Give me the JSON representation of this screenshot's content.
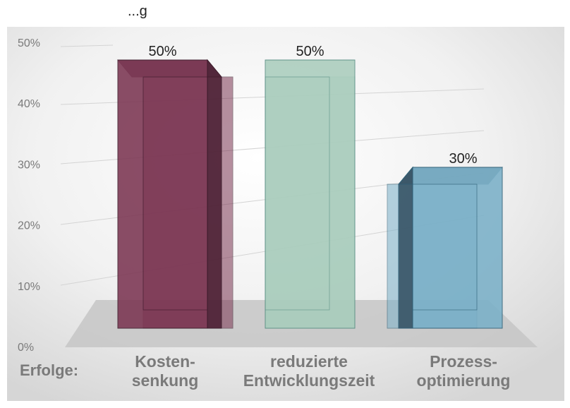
{
  "top_text": "...g",
  "chart_data": {
    "type": "bar",
    "categories": [
      [
        "Kosten-",
        "senkung"
      ],
      [
        "reduzierte",
        "Entwicklungszeit"
      ],
      [
        "Prozess-",
        "optimierung"
      ]
    ],
    "values": [
      50,
      50,
      30
    ],
    "value_labels": [
      "50%",
      "50%",
      "30%"
    ],
    "ylim": [
      0,
      55
    ],
    "yticks": [
      0,
      10,
      20,
      30,
      40,
      50
    ],
    "ytick_labels": [
      "0%",
      "10%",
      "20%",
      "30%",
      "40%",
      "50%"
    ],
    "xlabel": "Erfolge:",
    "grid": true,
    "colors": {
      "bar1_front": "#7b3552",
      "bar1_side": "#4e2236",
      "bar2_front": "#aacdbd",
      "bar2_side": "#8fb8a6",
      "bar3_front": "#7ab0c8",
      "bar3_side": "#375466",
      "floor": "#c8c8c8",
      "text": "#7a7a7a"
    }
  }
}
